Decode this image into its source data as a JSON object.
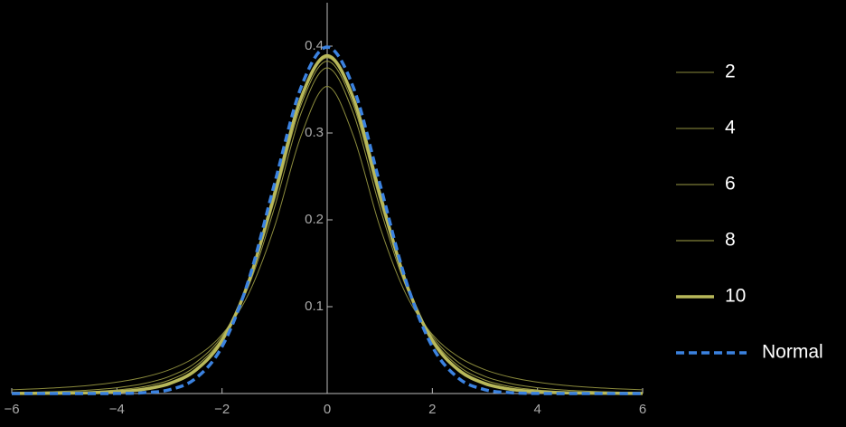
{
  "chart_data": {
    "type": "line",
    "x": [
      -6,
      -5.5,
      -5,
      -4.5,
      -4,
      -3.5,
      -3,
      -2.5,
      -2,
      -1.5,
      -1,
      -0.5,
      0,
      0.5,
      1,
      1.5,
      2,
      2.5,
      3,
      3.5,
      4,
      4.5,
      5,
      5.5,
      6
    ],
    "series": [
      {
        "name": "2",
        "color": "#8a8a3c",
        "values": [
          0.0043,
          0.0055,
          0.0071,
          0.0095,
          0.0131,
          0.0186,
          0.0274,
          0.0422,
          0.068,
          0.1141,
          0.1925,
          0.2963,
          0.3536,
          0.2963,
          0.1925,
          0.1141,
          0.068,
          0.0422,
          0.0274,
          0.0186,
          0.0131,
          0.0095,
          0.0071,
          0.0055,
          0.0043
        ]
      },
      {
        "name": "4",
        "color": "#929240",
        "values": [
          0.0012,
          0.0017,
          0.0026,
          0.0041,
          0.0067,
          0.0113,
          0.0197,
          0.0357,
          0.0663,
          0.1229,
          0.2147,
          0.3223,
          0.375,
          0.3223,
          0.2147,
          0.1229,
          0.0663,
          0.0357,
          0.0197,
          0.0113,
          0.0067,
          0.0041,
          0.0026,
          0.0017,
          0.0012
        ]
      },
      {
        "name": "6",
        "color": "#9a9a44",
        "values": [
          0.0004,
          0.0007,
          0.0012,
          0.0022,
          0.0041,
          0.0078,
          0.0155,
          0.0315,
          0.064,
          0.1256,
          0.2231,
          0.3318,
          0.3827,
          0.3318,
          0.2231,
          0.1256,
          0.064,
          0.0315,
          0.0155,
          0.0078,
          0.0041,
          0.0022,
          0.0012,
          0.0007,
          0.0004
        ]
      },
      {
        "name": "8",
        "color": "#a3a348",
        "values": [
          0.0002,
          0.0003,
          0.0007,
          0.0013,
          0.0028,
          0.0059,
          0.013,
          0.0288,
          0.0624,
          0.1268,
          0.2276,
          0.3367,
          0.3867,
          0.3367,
          0.2276,
          0.1268,
          0.0624,
          0.0288,
          0.013,
          0.0059,
          0.0028,
          0.0013,
          0.0007,
          0.0003,
          0.0002
        ]
      },
      {
        "name": "10",
        "color": "#b8b85a",
        "values": [
          0.0001,
          0.0002,
          0.0004,
          0.0009,
          0.002,
          0.0048,
          0.0114,
          0.0269,
          0.0611,
          0.1274,
          0.2304,
          0.3397,
          0.3891,
          0.3397,
          0.2304,
          0.1274,
          0.0611,
          0.0269,
          0.0114,
          0.0048,
          0.002,
          0.0009,
          0.0004,
          0.0002,
          0.0001
        ]
      },
      {
        "name": "Normal",
        "color": "#3b82e0",
        "dash": true,
        "values": [
          0,
          0,
          0,
          0,
          0.0001,
          0.0009,
          0.0044,
          0.0175,
          0.054,
          0.1295,
          0.242,
          0.3521,
          0.3989,
          0.3521,
          0.242,
          0.1295,
          0.054,
          0.0175,
          0.0044,
          0.0009,
          0.0001,
          0,
          0,
          0,
          0
        ]
      }
    ],
    "xlim": [
      -6,
      6
    ],
    "ylim": [
      0,
      0.45
    ],
    "xticks": [
      {
        "value": -6,
        "label": "−6"
      },
      {
        "value": -4,
        "label": "−4"
      },
      {
        "value": -2,
        "label": "−2"
      },
      0,
      2,
      4,
      6
    ],
    "yticks": [
      0.1,
      0.2,
      0.3,
      0.4
    ],
    "legend": "right"
  }
}
